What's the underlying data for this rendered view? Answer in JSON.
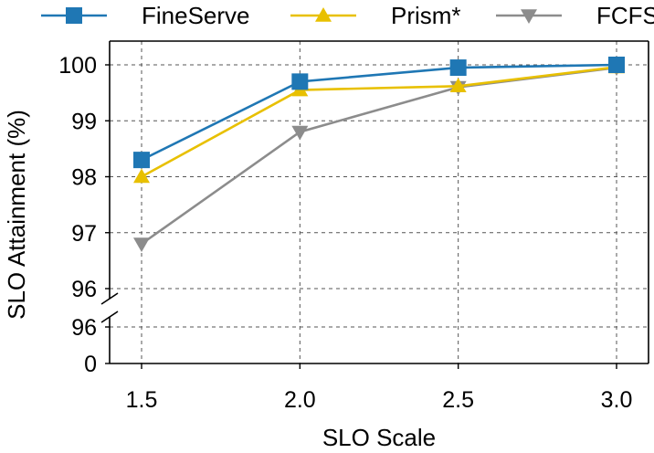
{
  "chart_data": {
    "type": "line",
    "xlabel": "SLO Scale",
    "ylabel": "SLO Attainment  (%)",
    "categories": [
      "1.5",
      "2.0",
      "2.5",
      "3.0"
    ],
    "x": [
      1.5,
      2.0,
      2.5,
      3.0
    ],
    "xlim": [
      1.5,
      3.0
    ],
    "ylim": [
      96,
      100
    ],
    "y_break": {
      "upper_ticks": [
        "96",
        "97",
        "98",
        "99",
        "100"
      ],
      "lower_ticks": [
        "0",
        "96"
      ]
    },
    "grid": true,
    "legend_position": "top",
    "series": [
      {
        "name": "FineServe",
        "values": [
          98.3,
          99.7,
          99.95,
          100.0
        ],
        "color": "#1f77b4",
        "marker": "square"
      },
      {
        "name": "Prism*",
        "values": [
          98.0,
          99.55,
          99.62,
          99.96
        ],
        "color": "#e8c000",
        "marker": "triangle-up"
      },
      {
        "name": "FCFS",
        "values": [
          96.8,
          98.8,
          99.6,
          99.95
        ],
        "color": "#8c8c8c",
        "marker": "triangle-down"
      }
    ]
  }
}
